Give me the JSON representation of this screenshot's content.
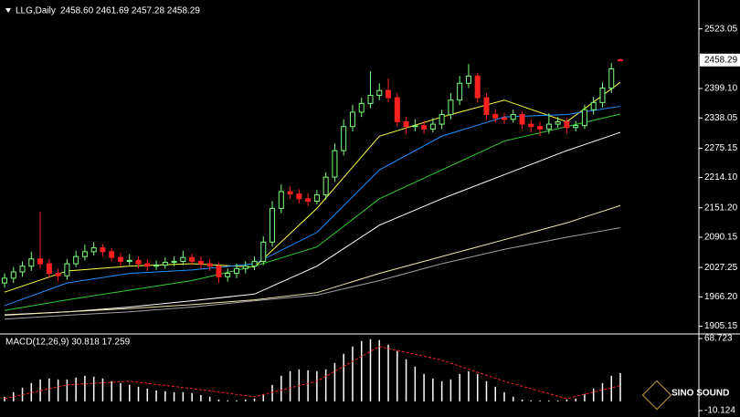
{
  "chart_data": [
    {
      "type": "candlestick",
      "title": "LLG,Daily",
      "subtitle": "2458.60 2461.69 2457.28 2458.29",
      "x": [
        0,
        1,
        2,
        3,
        4,
        5,
        6,
        7,
        8,
        9,
        10,
        11,
        12,
        13,
        14,
        15,
        16,
        17,
        18,
        19,
        20,
        21,
        22,
        23,
        24,
        25,
        26,
        27,
        28,
        29,
        30,
        31,
        32,
        33,
        34,
        35,
        36,
        37,
        38,
        39,
        40,
        41,
        42,
        43,
        44,
        45,
        46,
        47,
        48,
        49,
        50,
        51,
        52,
        53,
        54,
        55,
        56,
        57,
        58,
        59,
        60,
        61,
        62,
        63,
        64,
        65,
        66,
        67,
        68,
        69
      ],
      "open": [
        1995,
        2005,
        2018,
        2030,
        2045,
        2035,
        2015,
        2010,
        2035,
        2050,
        2060,
        2068,
        2060,
        2048,
        2040,
        2042,
        2035,
        2030,
        2032,
        2038,
        2040,
        2048,
        2040,
        2035,
        2030,
        2008,
        2015,
        2025,
        2030,
        2040,
        2080,
        2150,
        2185,
        2180,
        2170,
        2165,
        2178,
        2215,
        2270,
        2320,
        2350,
        2368,
        2385,
        2395,
        2380,
        2330,
        2320,
        2322,
        2315,
        2325,
        2345,
        2375,
        2410,
        2425,
        2380,
        2345,
        2338,
        2335,
        2345,
        2325,
        2320,
        2315,
        2325,
        2330,
        2318,
        2322,
        2355,
        2370,
        2400,
        2458.6
      ],
      "high": [
        2015,
        2028,
        2040,
        2060,
        2143,
        2045,
        2025,
        2045,
        2062,
        2075,
        2080,
        2076,
        2068,
        2058,
        2055,
        2050,
        2045,
        2042,
        2048,
        2050,
        2062,
        2056,
        2050,
        2045,
        2038,
        2025,
        2035,
        2040,
        2050,
        2092,
        2165,
        2200,
        2195,
        2190,
        2182,
        2188,
        2225,
        2285,
        2335,
        2365,
        2380,
        2435,
        2410,
        2420,
        2390,
        2340,
        2335,
        2332,
        2338,
        2355,
        2390,
        2425,
        2450,
        2432,
        2390,
        2356,
        2348,
        2355,
        2352,
        2335,
        2330,
        2348,
        2340,
        2338,
        2332,
        2365,
        2382,
        2412,
        2452,
        2461.69
      ],
      "low": [
        1985,
        1995,
        2008,
        2020,
        2025,
        2005,
        1998,
        2002,
        2028,
        2042,
        2052,
        2050,
        2040,
        2030,
        2032,
        2025,
        2020,
        2022,
        2025,
        2030,
        2032,
        2032,
        2025,
        2020,
        1995,
        1998,
        2005,
        2015,
        2022,
        2032,
        2070,
        2140,
        2170,
        2160,
        2155,
        2158,
        2168,
        2205,
        2260,
        2310,
        2340,
        2358,
        2375,
        2370,
        2320,
        2305,
        2310,
        2305,
        2308,
        2315,
        2335,
        2365,
        2400,
        2370,
        2335,
        2328,
        2325,
        2328,
        2315,
        2308,
        2300,
        2305,
        2318,
        2305,
        2310,
        2315,
        2345,
        2360,
        2390,
        2457.28
      ],
      "close": [
        2005,
        2018,
        2030,
        2045,
        2035,
        2015,
        2010,
        2035,
        2050,
        2060,
        2068,
        2060,
        2048,
        2040,
        2042,
        2035,
        2030,
        2032,
        2038,
        2040,
        2048,
        2040,
        2035,
        2030,
        2008,
        2015,
        2025,
        2030,
        2040,
        2080,
        2150,
        2185,
        2180,
        2170,
        2165,
        2178,
        2215,
        2270,
        2320,
        2350,
        2368,
        2385,
        2395,
        2380,
        2330,
        2320,
        2322,
        2315,
        2325,
        2345,
        2375,
        2410,
        2425,
        2380,
        2345,
        2338,
        2335,
        2345,
        2325,
        2320,
        2315,
        2325,
        2330,
        2318,
        2322,
        2355,
        2370,
        2400,
        2440,
        2458.29
      ],
      "up_color": "#7dff7d",
      "down_color": "#ff2020",
      "series": [
        {
          "color": "#ffff40",
          "x": [
            0,
            7,
            14,
            21,
            28,
            35,
            42,
            49,
            56,
            63,
            69
          ],
          "values": [
            1976,
            2020,
            2030,
            2035,
            2028,
            2150,
            2300,
            2340,
            2375,
            2330,
            2412
          ]
        },
        {
          "color": "#1e90ff",
          "x": [
            0,
            7,
            14,
            21,
            28,
            35,
            42,
            49,
            56,
            63,
            69
          ],
          "values": [
            1948,
            1995,
            2015,
            2022,
            2035,
            2100,
            2230,
            2300,
            2340,
            2345,
            2362
          ]
        },
        {
          "color": "#32cd32",
          "x": [
            0,
            7,
            14,
            21,
            28,
            35,
            42,
            49,
            56,
            63,
            69
          ],
          "values": [
            1938,
            1960,
            1980,
            2000,
            2030,
            2070,
            2170,
            2230,
            2290,
            2320,
            2346
          ]
        },
        {
          "color": "#ffffff",
          "x": [
            0,
            7,
            14,
            21,
            28,
            35,
            42,
            49,
            56,
            63,
            69
          ],
          "values": [
            1929,
            1935,
            1945,
            1958,
            1972,
            2030,
            2115,
            2170,
            2220,
            2270,
            2308
          ]
        },
        {
          "color": "#eee8aa",
          "x": [
            0,
            7,
            14,
            21,
            28,
            35,
            42,
            49,
            56,
            63,
            69
          ],
          "values": [
            1928,
            1935,
            1942,
            1950,
            1960,
            1975,
            2015,
            2050,
            2085,
            2120,
            2156
          ]
        },
        {
          "color": "#a0a0a0",
          "x": [
            0,
            7,
            14,
            21,
            28,
            35,
            42,
            49,
            56,
            63,
            69
          ],
          "values": [
            1920,
            1928,
            1935,
            1945,
            1958,
            1970,
            2000,
            2035,
            2065,
            2090,
            2110
          ]
        }
      ],
      "xlim": [
        0,
        69
      ],
      "ylim": [
        1891,
        2583
      ],
      "yticks": [
        2523.05,
        {
          "value": 2399.1,
          "label": "2399.10"
        },
        2338.05,
        2275.15,
        {
          "value": 2214.1,
          "label": "2214.10"
        },
        {
          "value": 2151.2,
          "label": "2151.20"
        },
        2090.15,
        2027.25,
        {
          "value": 1966.2,
          "label": "1966.20"
        },
        1905.15
      ],
      "last_price": 2458.29
    },
    {
      "type": "macd",
      "title": "MACD(12,26,9) 30.818 17.259",
      "values": [
        5,
        10,
        15,
        20,
        24,
        25,
        24,
        24,
        26,
        28,
        27,
        25,
        22,
        20,
        18,
        16,
        14,
        12,
        11,
        10,
        10,
        9,
        7,
        5,
        2,
        1,
        1,
        2,
        3,
        8,
        18,
        28,
        33,
        35,
        34,
        33,
        35,
        42,
        52,
        60,
        66,
        68,
        67,
        62,
        55,
        46,
        38,
        30,
        25,
        22,
        24,
        30,
        33,
        30,
        22,
        16,
        10,
        5,
        2,
        1,
        1,
        1,
        1,
        2,
        3,
        8,
        14,
        20,
        28,
        30.818
      ],
      "color": "#ffffff",
      "signal": {
        "color": "#ff2020",
        "x": [
          0,
          7,
          14,
          21,
          28,
          35,
          42,
          49,
          56,
          63,
          69
        ],
        "values": [
          3,
          18,
          22,
          14,
          5,
          22,
          60,
          45,
          22,
          3,
          17.259
        ]
      },
      "ylim": [
        -17.1,
        72.7
      ],
      "yticks": [
        68.723,
        -10.124
      ]
    }
  ],
  "logo": "SINO SOUND"
}
